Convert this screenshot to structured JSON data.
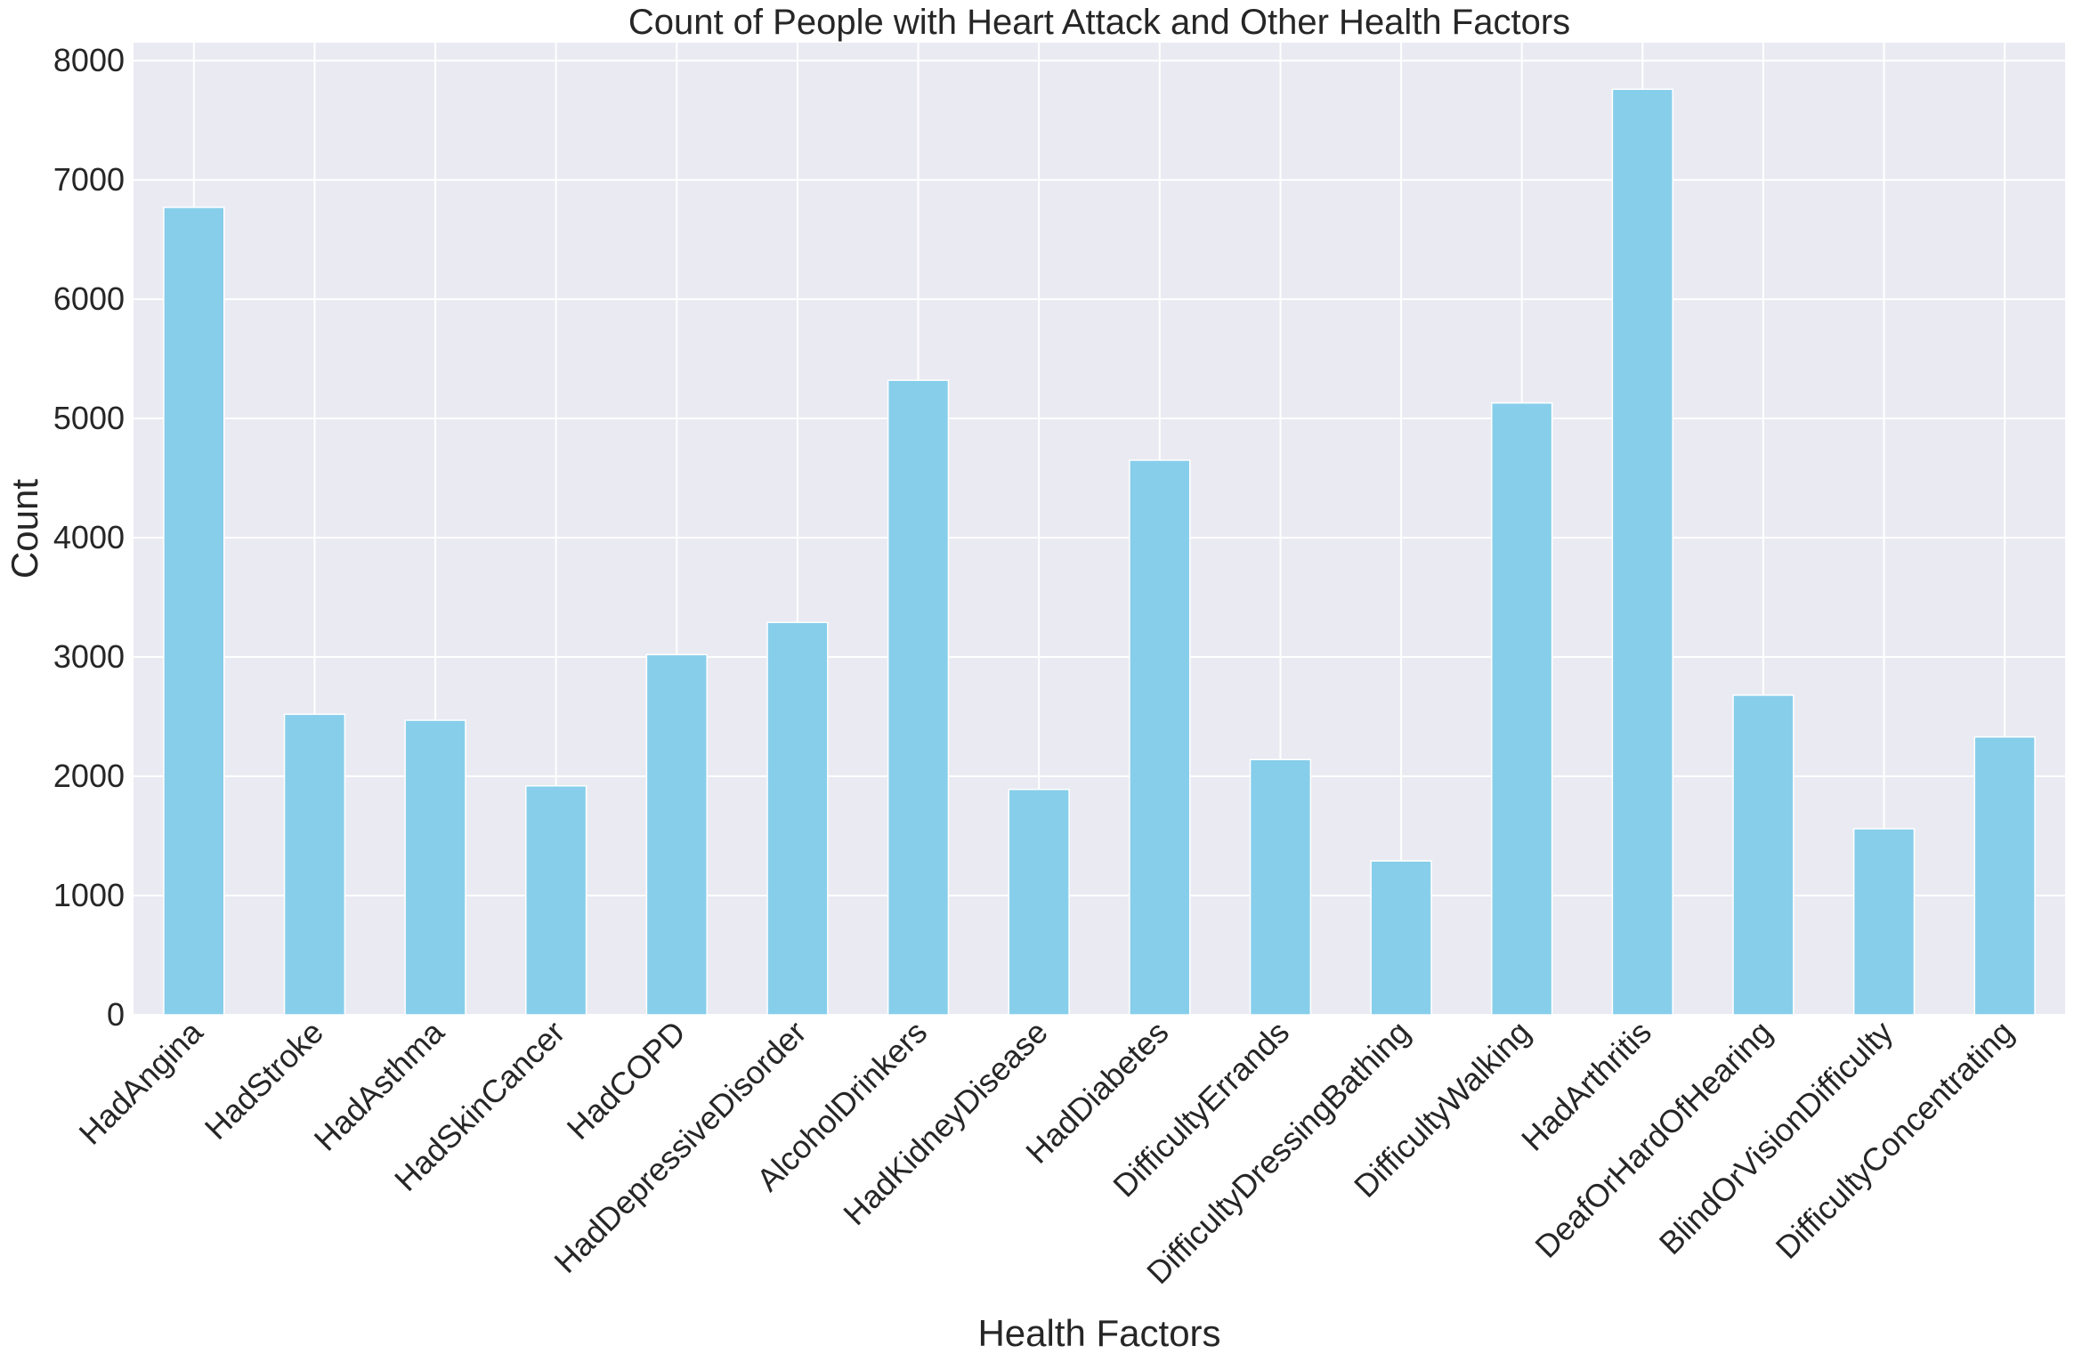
{
  "chart_data": {
    "type": "bar",
    "title": "Count of People with Heart Attack and Other Health Factors",
    "xlabel": "Health Factors",
    "ylabel": "Count",
    "categories": [
      "HadAngina",
      "HadStroke",
      "HadAsthma",
      "HadSkinCancer",
      "HadCOPD",
      "HadDepressiveDisorder",
      "AlcoholDrinkers",
      "HadKidneyDisease",
      "HadDiabetes",
      "DifficultyErrands",
      "DifficultyDressingBathing",
      "DifficultyWalking",
      "HadArthritis",
      "DeafOrHardOfHearing",
      "BlindOrVisionDifficulty",
      "DifficultyConcentrating"
    ],
    "values": [
      6770,
      2520,
      2470,
      1920,
      3020,
      3290,
      5320,
      1890,
      4650,
      2140,
      1290,
      5130,
      7760,
      2680,
      1560,
      2330
    ],
    "ylim": [
      0,
      8150
    ],
    "yticks": [
      0,
      1000,
      2000,
      3000,
      4000,
      5000,
      6000,
      7000,
      8000
    ],
    "grid": true,
    "bar_color": "#87CEEB",
    "background_color": "#EAEAF2",
    "grid_color": "#FFFFFF"
  }
}
